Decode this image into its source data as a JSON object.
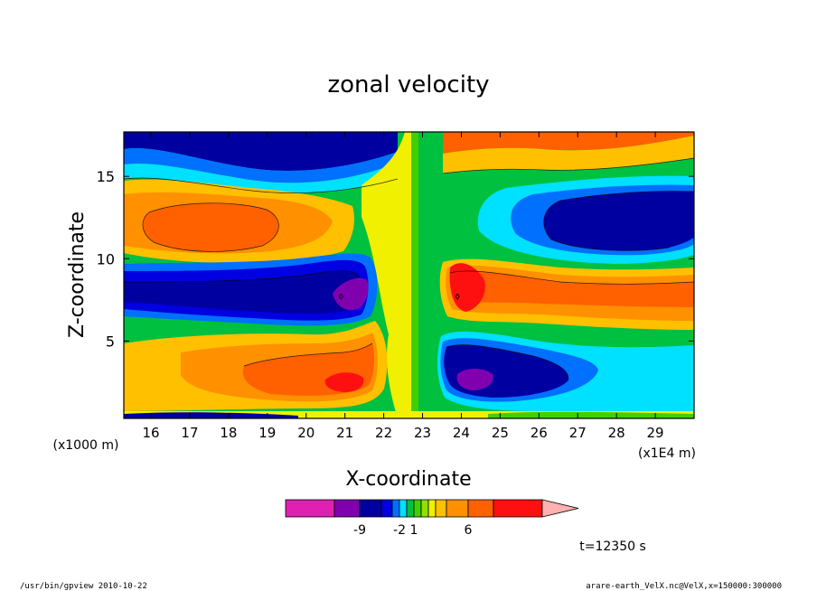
{
  "chart_data": {
    "type": "heatmap",
    "title": "zonal velocity",
    "xlabel": "X-coordinate",
    "ylabel": "Z-coordinate",
    "x_unit_label": "(x1E4 m)",
    "y_unit_label": "(x1000 m)",
    "x_ticks": [
      "16",
      "17",
      "18",
      "19",
      "20",
      "21",
      "22",
      "23",
      "24",
      "25",
      "26",
      "27",
      "28",
      "29"
    ],
    "y_ticks": [
      "5",
      "10",
      "15"
    ],
    "xlim": [
      15.3,
      30.0
    ],
    "ylim": [
      0.3,
      17.7
    ],
    "colorbar": {
      "tick_labels": [
        "-9",
        "-2",
        "1",
        "6"
      ],
      "tick_values": [
        -9,
        -2,
        1,
        6
      ],
      "colors": [
        "#e020b0",
        "#8000b0",
        "#0000a0",
        "#0000e0",
        "#0070ff",
        "#00e0ff",
        "#00c040",
        "#40d000",
        "#90e000",
        "#f0f000",
        "#ffc000",
        "#ff9000",
        "#ff6000",
        "#ff1010",
        "#ff7070",
        "#ffb0b0"
      ]
    },
    "features": [
      {
        "kind": "core",
        "sign": "positive",
        "x": 17.8,
        "y": 12.5,
        "level": 4
      },
      {
        "kind": "core",
        "sign": "negative",
        "x": 27.8,
        "y": 11.8,
        "level": -5
      },
      {
        "kind": "core",
        "sign": "negative",
        "x": 19.5,
        "y": 7.2,
        "level": -5
      },
      {
        "kind": "core",
        "sign": "positive",
        "x": 25.8,
        "y": 7.2,
        "level": 4
      },
      {
        "kind": "core",
        "sign": "positive",
        "x": 20.6,
        "y": 2.6,
        "level": 4
      },
      {
        "kind": "core",
        "sign": "negative",
        "x": 24.7,
        "y": 2.6,
        "level": -5
      },
      {
        "kind": "extreme",
        "sign": "negative",
        "x": 20.9,
        "y": 7.7,
        "level": -9
      },
      {
        "kind": "extreme",
        "sign": "positive",
        "x": 23.9,
        "y": 7.7,
        "level": 6
      },
      {
        "kind": "extreme",
        "sign": "positive",
        "x": 21.0,
        "y": 2.2,
        "level": 6
      },
      {
        "kind": "extreme",
        "sign": "negative",
        "x": 24.2,
        "y": 2.2,
        "level": -9
      }
    ]
  },
  "time_label": "t=12350 s",
  "footer": {
    "left": "/usr/bin/gpview   2010-10-22",
    "right": "arare-earth_VelX.nc@VelX,x=150000:300000"
  }
}
